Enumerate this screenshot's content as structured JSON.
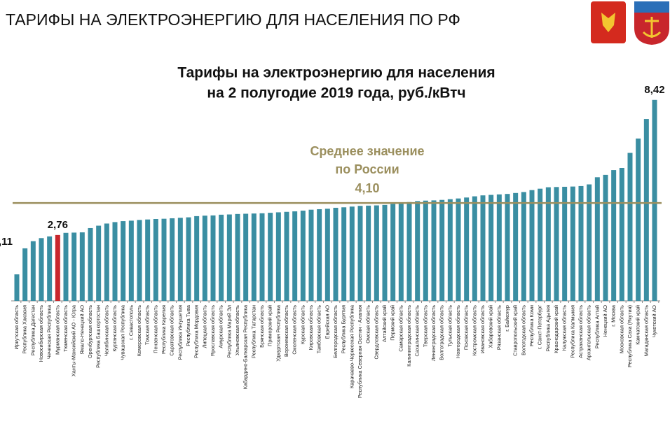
{
  "header": {
    "title": "ТАРИФЫ НА ЭЛЕКТРОЭНЕРГИЮ ДЛЯ НАСЕЛЕНИЯ ПО РФ"
  },
  "chart_data": {
    "type": "bar",
    "title": [
      "Тарифы на электроэнергию для населения",
      "на 2 полугодие 2019 года, руб./кВтч"
    ],
    "categories": [
      "Иркутская область",
      "Республика Хакасия",
      "Республика Дагестан",
      "Новосибирская область",
      "Чеченская Республика",
      "Мурманская область",
      "Тюменская область",
      "Ханты-Мансийский АО - Югра",
      "Ямало-Ненецкий АО",
      "Оренбургская область",
      "Республика Башкортостан",
      "Челябинская область",
      "Курганская область",
      "Чувашская Республика",
      "г. Севастополь",
      "Кемеровская область",
      "Томская область",
      "Пензенская область",
      "Республика Карелия",
      "Саратовская область",
      "Республика Ингушетия",
      "Республика Тыва",
      "Республика Мордовия",
      "Липецкая область",
      "Ярославская область",
      "Амурская область",
      "Республика Марий Эл",
      "Ульяновская область",
      "Кабардино-Балкарская Республика",
      "Республика Татарстан",
      "Брянская область",
      "Приморский край",
      "Удмуртская Республика",
      "Воронежская область",
      "Смоленская область",
      "Курская область",
      "Кировская область",
      "Тамбовская область",
      "Еврейская АО",
      "Белгородская область",
      "Республика Бурятия",
      "Карачаево-Черкесская Республика",
      "Республика Северная Осетия - Алания",
      "Омская область",
      "Свердловская область",
      "Алтайский край",
      "Пермский край",
      "Самарская область",
      "Калининградская область",
      "Сахалинская область",
      "Тверская область",
      "Ленинградская область",
      "Волгоградская область",
      "Тульская область",
      "Новгородская область",
      "Псковская область",
      "Костромская область",
      "Ивановская область",
      "Хабаровский край",
      "Рязанская область",
      "г. Байконур",
      "Ставропольский край",
      "Вологодская область",
      "Республика Коми",
      "г. Санкт-Петербург",
      "Республика Адыгея",
      "Краснодарский край",
      "Калужская область",
      "Республика Калмыкия",
      "Астраханская область",
      "Архангельская область",
      "Республика Алтай",
      "Ненецкий АО",
      "г. Москва",
      "Московская область",
      "Республика Саха (Якутия)",
      "Камчатский край",
      "Магаданская область",
      "Чукотский АО"
    ],
    "values": [
      1.11,
      2.2,
      2.5,
      2.63,
      2.7,
      2.76,
      2.85,
      2.86,
      2.87,
      3.05,
      3.15,
      3.24,
      3.3,
      3.34,
      3.36,
      3.39,
      3.41,
      3.43,
      3.44,
      3.46,
      3.48,
      3.5,
      3.55,
      3.57,
      3.58,
      3.61,
      3.62,
      3.64,
      3.65,
      3.66,
      3.67,
      3.69,
      3.71,
      3.73,
      3.75,
      3.78,
      3.82,
      3.84,
      3.86,
      3.9,
      3.92,
      3.95,
      3.98,
      3.99,
      4.0,
      4.02,
      4.06,
      4.1,
      4.14,
      4.18,
      4.2,
      4.21,
      4.23,
      4.26,
      4.29,
      4.33,
      4.38,
      4.42,
      4.44,
      4.46,
      4.48,
      4.52,
      4.56,
      4.64,
      4.7,
      4.76,
      4.77,
      4.78,
      4.79,
      4.81,
      4.88,
      5.18,
      5.28,
      5.48,
      5.57,
      6.2,
      6.8,
      7.62,
      8.42
    ],
    "value_labels": [
      "1,11",
      null,
      null,
      null,
      null,
      "2,76",
      null,
      null,
      null,
      null,
      null,
      null,
      null,
      null,
      null,
      null,
      null,
      null,
      null,
      null,
      null,
      null,
      null,
      null,
      null,
      null,
      null,
      null,
      null,
      null,
      null,
      null,
      null,
      null,
      null,
      null,
      null,
      null,
      null,
      null,
      null,
      null,
      null,
      null,
      null,
      null,
      null,
      null,
      null,
      null,
      null,
      null,
      null,
      null,
      null,
      null,
      null,
      null,
      null,
      null,
      null,
      null,
      null,
      null,
      null,
      null,
      null,
      null,
      null,
      null,
      null,
      null,
      null,
      null,
      null,
      null,
      null,
      null,
      "8,42"
    ],
    "color": "#3a8ea2",
    "highlight_category": "Мурманская область",
    "highlight_color": "#c8262c",
    "ylim": [
      0,
      9
    ],
    "mean": {
      "label": [
        "Среднее значение",
        "по России"
      ],
      "value": 4.1,
      "value_label": "4,10",
      "color": "#9b8f5e"
    }
  }
}
